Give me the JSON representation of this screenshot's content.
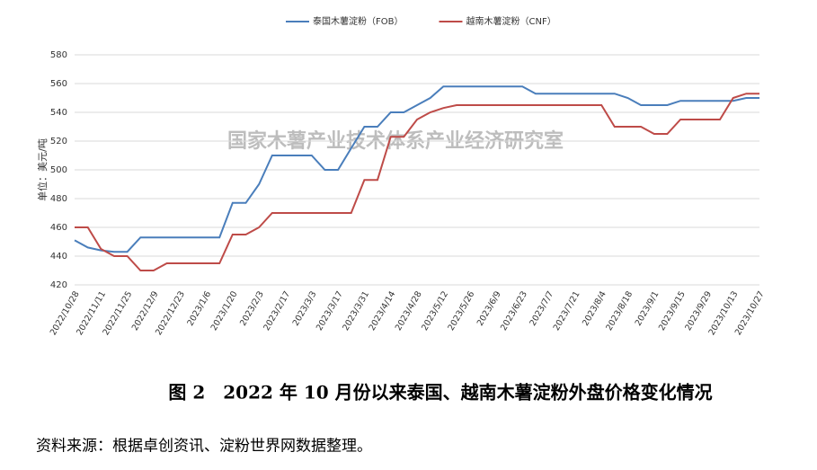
{
  "chart_data": {
    "type": "line",
    "title": "图 2　2022 年 10 月份以来泰国、越南木薯淀粉外盘价格变化情况",
    "source": "资料来源：根据卓创资讯、淀粉世界网数据整理。",
    "watermark": "国家木薯产业技术体系产业经济研究室",
    "ylabel": "单位：美元/吨",
    "categories": [
      "2022/10/28",
      null,
      "2022/11/11",
      null,
      "2022/11/25",
      null,
      "2022/12/9",
      null,
      "2022/12/23",
      null,
      "2023/1/6",
      null,
      "2023/1/20",
      null,
      "2023/2/3",
      null,
      "2023/2/17",
      null,
      "2023/3/3",
      null,
      "2023/3/17",
      null,
      "2023/3/31",
      null,
      "2023/4/14",
      null,
      "2023/4/28",
      null,
      "2023/5/12",
      null,
      "2023/5/26",
      null,
      "2023/6/9",
      null,
      "2023/6/23",
      null,
      "2023/7/7",
      null,
      "2023/7/21",
      null,
      "2023/8/4",
      null,
      "2023/8/18",
      null,
      "2023/9/1",
      null,
      "2023/9/15",
      null,
      "2023/9/29",
      null,
      "2023/10/13",
      null,
      "2023/10/27"
    ],
    "series": [
      {
        "name": "泰国木薯淀粉（FOB）",
        "color": "#4a7ebb",
        "values": [
          451,
          446,
          444,
          443,
          443,
          453,
          453,
          453,
          453,
          453,
          453,
          453,
          477,
          477,
          490,
          510,
          510,
          510,
          510,
          500,
          500,
          515,
          530,
          530,
          540,
          540,
          545,
          550,
          558,
          558,
          558,
          558,
          558,
          558,
          558,
          553,
          553,
          553,
          553,
          553,
          553,
          553,
          550,
          545,
          545,
          545,
          548,
          548,
          548,
          548,
          548,
          550,
          550
        ]
      },
      {
        "name": "越南木薯淀粉（CNF）",
        "color": "#be4b48",
        "values": [
          460,
          460,
          445,
          440,
          440,
          430,
          430,
          435,
          435,
          435,
          435,
          435,
          455,
          455,
          460,
          470,
          470,
          470,
          470,
          470,
          470,
          470,
          493,
          493,
          523,
          523,
          535,
          540,
          543,
          545,
          545,
          545,
          545,
          545,
          545,
          545,
          545,
          545,
          545,
          545,
          545,
          530,
          530,
          530,
          525,
          525,
          535,
          535,
          535,
          535,
          550,
          553,
          553
        ]
      }
    ],
    "ylim": [
      420,
      580
    ],
    "yticks": [
      420,
      440,
      460,
      480,
      500,
      520,
      540,
      560,
      580
    ],
    "grid": true
  }
}
